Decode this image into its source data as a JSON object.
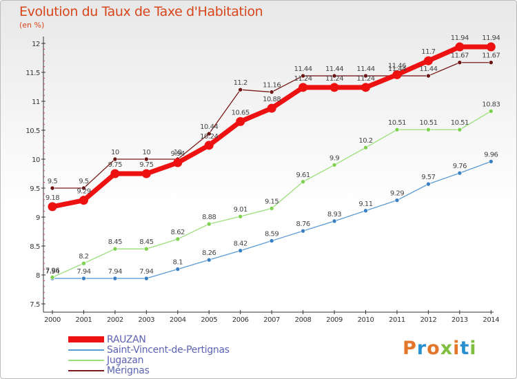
{
  "title": "Evolution du Taux de Taxe d'Habitation",
  "subtitle": "(en %)",
  "logo": "Proxiti",
  "chart_data": {
    "type": "line",
    "x": [
      "2000",
      "2001",
      "2002",
      "2003",
      "2004",
      "2005",
      "2006",
      "2007",
      "2008",
      "2009",
      "2010",
      "2011",
      "2012",
      "2013",
      "2014"
    ],
    "ylim": [
      7.5,
      12
    ],
    "yticks": [
      "7.5",
      "8",
      "8.5",
      "9",
      "9.5",
      "10",
      "10.5",
      "11",
      "11.5",
      "12"
    ],
    "grid": false,
    "legend_position": "bottom-left",
    "series": [
      {
        "name": "RAUZAN",
        "color": "#ee1111",
        "width": 7,
        "values": [
          9.18,
          9.29,
          9.75,
          9.75,
          9.94,
          10.24,
          10.65,
          10.88,
          11.24,
          11.24,
          11.24,
          11.46,
          11.7,
          11.94,
          11.94
        ],
        "labels": [
          "9.18",
          "9.29",
          "9.75",
          "9.75",
          "9.94",
          "10.24",
          "10.65",
          "10.88",
          "11.24",
          "11.24",
          "11.24",
          "11.46",
          "11.7",
          "11.94",
          "11.94"
        ]
      },
      {
        "name": "Saint-Vincent-de-Pertignas",
        "color": "#5b9bd5",
        "marker": "#3a7fc1",
        "width": 1.3,
        "values": [
          7.94,
          7.94,
          7.94,
          7.94,
          8.1,
          8.26,
          8.42,
          8.59,
          8.76,
          8.93,
          9.11,
          9.29,
          9.57,
          9.76,
          9.96
        ],
        "labels": [
          "7.94",
          "7.94",
          "7.94",
          "7.94",
          "8.1",
          "8.26",
          "8.42",
          "8.59",
          "8.76",
          "8.93",
          "9.11",
          "9.29",
          "9.57",
          "9.76",
          "9.96"
        ]
      },
      {
        "name": "Jugazan",
        "color": "#9ae07a",
        "marker": "#7ed14f",
        "width": 1.3,
        "values": [
          7.96,
          8.2,
          8.45,
          8.45,
          8.62,
          8.88,
          9.01,
          9.15,
          9.61,
          9.9,
          10.2,
          10.51,
          10.51,
          10.51,
          10.83
        ],
        "labels": [
          "7.96",
          "8.2",
          "8.45",
          "8.45",
          "8.62",
          "8.88",
          "9.01",
          "9.15",
          "9.61",
          "9.9",
          "10.2",
          "10.51",
          "10.51",
          "10.51",
          "10.83"
        ]
      },
      {
        "name": "Mérignas",
        "color": "#7a1a1a",
        "marker": "#6b1515",
        "width": 1.3,
        "values": [
          9.5,
          9.5,
          10,
          10,
          10,
          10.44,
          11.2,
          11.16,
          11.44,
          11.44,
          11.44,
          11.44,
          11.44,
          11.67,
          11.67
        ],
        "labels": [
          "9.5",
          "9.5",
          "10",
          "10",
          "10",
          "10.44",
          "11.2",
          "11.16",
          "11.44",
          "11.44",
          "11.44",
          "11.44",
          "11.44",
          "11.67",
          "11.67"
        ]
      }
    ]
  }
}
